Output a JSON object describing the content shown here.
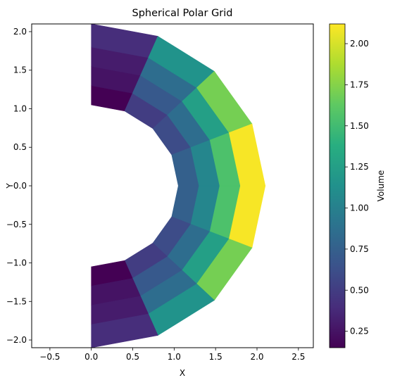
{
  "chart_data": {
    "type": "heatmap",
    "title": "Spherical Polar Grid",
    "xlabel": "X",
    "ylabel": "Y",
    "xlim": [
      -0.72,
      2.68
    ],
    "ylim": [
      -2.1,
      2.1
    ],
    "x_ticks": [
      -0.5,
      0.0,
      0.5,
      1.0,
      1.5,
      2.0,
      2.5
    ],
    "x_tick_labels": [
      "−0.5",
      "0.0",
      "0.5",
      "1.0",
      "1.5",
      "2.0",
      "2.5"
    ],
    "y_ticks": [
      -2.0,
      -1.5,
      -1.0,
      -0.5,
      0.0,
      0.5,
      1.0,
      1.5,
      2.0
    ],
    "y_tick_labels": [
      "−2.0",
      "−1.5",
      "−1.0",
      "−0.5",
      "0.0",
      "0.5",
      "1.0",
      "1.5",
      "2.0"
    ],
    "grid": false,
    "colormap": "viridis",
    "colorbar": {
      "label": "Volume",
      "range": [
        0.15,
        2.12
      ],
      "ticks": [
        0.25,
        0.5,
        0.75,
        1.0,
        1.25,
        1.5,
        1.75,
        2.0
      ],
      "tick_labels": [
        "0.25",
        "0.50",
        "0.75",
        "1.00",
        "1.25",
        "1.50",
        "1.75",
        "2.00"
      ]
    },
    "grid_structure": {
      "radial_edges": [
        1.05,
        1.3,
        1.55,
        1.8,
        2.1
      ],
      "polar_angle_edges_deg": [
        0,
        22.5,
        45,
        67.5,
        90,
        112.5,
        135,
        157.5,
        180
      ]
    },
    "cells": [
      {
        "r": [
          1.05,
          1.3
        ],
        "theta_deg": [
          0,
          22.5
        ],
        "volume": 0.15
      },
      {
        "r": [
          1.05,
          1.3
        ],
        "theta_deg": [
          22.5,
          45
        ],
        "volume": 0.5
      },
      {
        "r": [
          1.05,
          1.3
        ],
        "theta_deg": [
          45,
          67.5
        ],
        "volume": 0.6
      },
      {
        "r": [
          1.05,
          1.3
        ],
        "theta_deg": [
          67.5,
          90
        ],
        "volume": 0.75
      },
      {
        "r": [
          1.05,
          1.3
        ],
        "theta_deg": [
          90,
          112.5
        ],
        "volume": 0.75
      },
      {
        "r": [
          1.05,
          1.3
        ],
        "theta_deg": [
          112.5,
          135
        ],
        "volume": 0.6
      },
      {
        "r": [
          1.05,
          1.3
        ],
        "theta_deg": [
          135,
          157.5
        ],
        "volume": 0.5
      },
      {
        "r": [
          1.05,
          1.3
        ],
        "theta_deg": [
          157.5,
          180
        ],
        "volume": 0.15
      },
      {
        "r": [
          1.3,
          1.55
        ],
        "theta_deg": [
          0,
          22.5
        ],
        "volume": 0.25
      },
      {
        "r": [
          1.3,
          1.55
        ],
        "theta_deg": [
          22.5,
          45
        ],
        "volume": 0.7
      },
      {
        "r": [
          1.3,
          1.55
        ],
        "theta_deg": [
          45,
          67.5
        ],
        "volume": 0.85
      },
      {
        "r": [
          1.3,
          1.55
        ],
        "theta_deg": [
          67.5,
          90
        ],
        "volume": 1.05
      },
      {
        "r": [
          1.3,
          1.55
        ],
        "theta_deg": [
          90,
          112.5
        ],
        "volume": 1.05
      },
      {
        "r": [
          1.3,
          1.55
        ],
        "theta_deg": [
          112.5,
          135
        ],
        "volume": 0.85
      },
      {
        "r": [
          1.3,
          1.55
        ],
        "theta_deg": [
          135,
          157.5
        ],
        "volume": 0.7
      },
      {
        "r": [
          1.3,
          1.55
        ],
        "theta_deg": [
          157.5,
          180
        ],
        "volume": 0.25
      },
      {
        "r": [
          1.55,
          1.8
        ],
        "theta_deg": [
          0,
          22.5
        ],
        "volume": 0.3
      },
      {
        "r": [
          1.55,
          1.8
        ],
        "theta_deg": [
          22.5,
          45
        ],
        "volume": 0.85
      },
      {
        "r": [
          1.55,
          1.8
        ],
        "theta_deg": [
          45,
          67.5
        ],
        "volume": 1.25
      },
      {
        "r": [
          1.55,
          1.8
        ],
        "theta_deg": [
          67.5,
          90
        ],
        "volume": 1.55
      },
      {
        "r": [
          1.55,
          1.8
        ],
        "theta_deg": [
          90,
          112.5
        ],
        "volume": 1.55
      },
      {
        "r": [
          1.55,
          1.8
        ],
        "theta_deg": [
          112.5,
          135
        ],
        "volume": 1.25
      },
      {
        "r": [
          1.55,
          1.8
        ],
        "theta_deg": [
          135,
          157.5
        ],
        "volume": 0.85
      },
      {
        "r": [
          1.55,
          1.8
        ],
        "theta_deg": [
          157.5,
          180
        ],
        "volume": 0.3
      },
      {
        "r": [
          1.8,
          2.1
        ],
        "theta_deg": [
          0,
          22.5
        ],
        "volume": 0.4
      },
      {
        "r": [
          1.8,
          2.1
        ],
        "theta_deg": [
          22.5,
          45
        ],
        "volume": 1.15
      },
      {
        "r": [
          1.8,
          2.1
        ],
        "theta_deg": [
          45,
          67.5
        ],
        "volume": 1.7
      },
      {
        "r": [
          1.8,
          2.1
        ],
        "theta_deg": [
          67.5,
          90
        ],
        "volume": 2.1
      },
      {
        "r": [
          1.8,
          2.1
        ],
        "theta_deg": [
          90,
          112.5
        ],
        "volume": 2.1
      },
      {
        "r": [
          1.8,
          2.1
        ],
        "theta_deg": [
          112.5,
          135
        ],
        "volume": 1.7
      },
      {
        "r": [
          1.8,
          2.1
        ],
        "theta_deg": [
          135,
          157.5
        ],
        "volume": 1.15
      },
      {
        "r": [
          1.8,
          2.1
        ],
        "theta_deg": [
          157.5,
          180
        ],
        "volume": 0.4
      }
    ]
  }
}
